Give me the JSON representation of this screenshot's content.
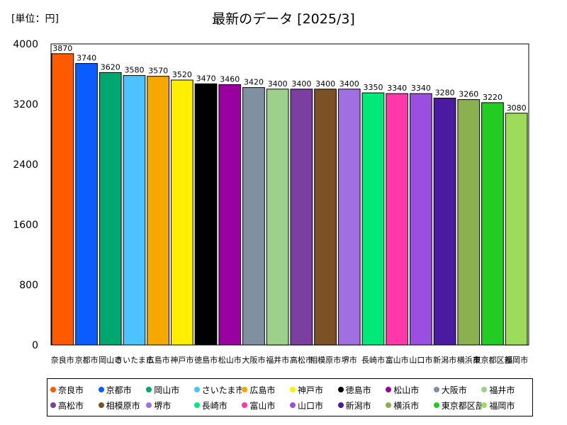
{
  "unit_label": "[単位：円]",
  "chart_data": {
    "type": "bar",
    "title": "最新のデータ [2025/3]",
    "ylim": [
      0,
      4000
    ],
    "yticks": [
      0,
      800,
      1600,
      2400,
      3200,
      4000
    ],
    "grid": false,
    "legend_position": "bottom",
    "categories": [
      "奈良市",
      "京都市",
      "岡山市",
      "さいたま市",
      "広島市",
      "神戸市",
      "徳島市",
      "松山市",
      "大阪市",
      "福井市",
      "高松市",
      "相模原市",
      "堺市",
      "長崎市",
      "富山市",
      "山口市",
      "新潟市",
      "横浜市",
      "東京都区部",
      "福岡市"
    ],
    "values": [
      3870,
      3740,
      3620,
      3580,
      3570,
      3520,
      3470,
      3460,
      3420,
      3400,
      3400,
      3400,
      3400,
      3350,
      3340,
      3340,
      3280,
      3260,
      3220,
      3080
    ],
    "colors": [
      "#ff5a00",
      "#0a5cff",
      "#00a870",
      "#4cc3ff",
      "#f5a800",
      "#ffee00",
      "#000000",
      "#9a00a0",
      "#8090a0",
      "#9dd08a",
      "#7b3fa0",
      "#7d5126",
      "#a070e0",
      "#00e878",
      "#ff3aa8",
      "#9b4fe0",
      "#4a1aa0",
      "#8ab050",
      "#22cc22",
      "#9ddc5a"
    ]
  }
}
